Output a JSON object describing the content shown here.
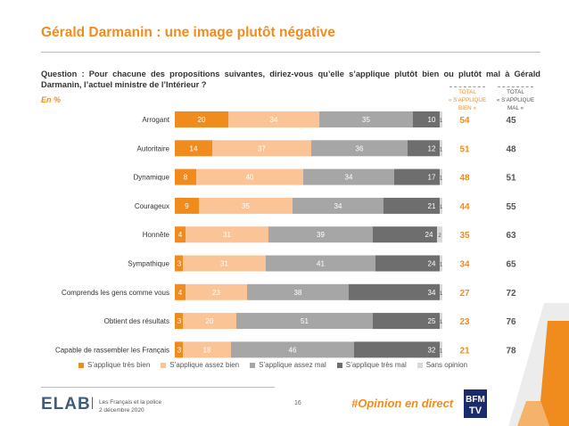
{
  "header": {
    "title": "Gérald Darmanin : une image plutôt négative",
    "question": "Question : Pour chacune des propositions suivantes, diriez-vous qu’elle s’applique plutôt bien ou plutôt mal à Gérald Darmanin, l’actuel ministre de l’Intérieur ?",
    "unit": "En %",
    "total_bien_line1": "TOTAL",
    "total_bien_line2": "« S’APPLIQUE",
    "total_bien_line3": "BIEN »",
    "total_mal_line1": "TOTAL",
    "total_mal_line2": "« S’APPLIQUE",
    "total_mal_line3": "MAL »"
  },
  "chart_data": {
    "type": "bar",
    "orientation": "horizontal",
    "stacked": true,
    "categories": [
      "Arrogant",
      "Autoritaire",
      "Dynamique",
      "Courageux",
      "Honnête",
      "Sympathique",
      "Comprends les gens comme vous",
      "Obtient des résultats",
      "Capable de rassembler les Français"
    ],
    "series": [
      {
        "name": "S’applique très bien",
        "color": "#f08c1e",
        "values": [
          20,
          14,
          8,
          9,
          4,
          3,
          4,
          3,
          3
        ]
      },
      {
        "name": "S’applique assez bien",
        "color": "#fbc496",
        "values": [
          34,
          37,
          40,
          35,
          31,
          31,
          23,
          20,
          18
        ]
      },
      {
        "name": "S’applique assez mal",
        "color": "#a6a6a6",
        "values": [
          35,
          36,
          34,
          34,
          39,
          41,
          38,
          51,
          46
        ]
      },
      {
        "name": "S’applique très mal",
        "color": "#6e6e6e",
        "values": [
          10,
          12,
          17,
          21,
          24,
          24,
          34,
          25,
          32
        ]
      },
      {
        "name": "Sans opinion",
        "color": "#d9d9d9",
        "values": [
          1,
          1,
          1,
          1,
          2,
          1,
          1,
          1,
          1
        ]
      }
    ],
    "totals": {
      "bien": [
        54,
        51,
        48,
        44,
        35,
        34,
        27,
        23,
        21
      ],
      "mal": [
        45,
        48,
        51,
        55,
        63,
        65,
        72,
        76,
        78
      ]
    },
    "xlim": [
      0,
      100
    ],
    "legend_position": "bottom"
  },
  "footer": {
    "logo": "ELABE",
    "study": "Les Français et la police",
    "date": "2 décembre 2020",
    "page": "16",
    "hashtag": "#Opinion en direct",
    "partner": "BFM TV"
  }
}
